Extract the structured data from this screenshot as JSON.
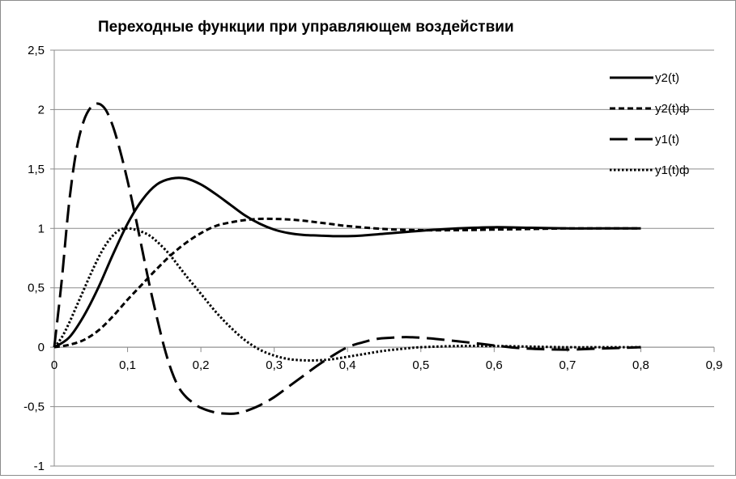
{
  "chart_data": {
    "type": "line",
    "title": "Переходные функции при управляющем воздействии",
    "xlabel": "",
    "ylabel": "",
    "xlim": [
      0,
      0.9
    ],
    "ylim": [
      -1,
      2.5
    ],
    "x_ticks": [
      "0",
      "0,1",
      "0,2",
      "0,3",
      "0,4",
      "0,5",
      "0,6",
      "0,7",
      "0,8",
      "0,9"
    ],
    "y_ticks": [
      "-1",
      "-0,5",
      "0",
      "0,5",
      "1",
      "1,5",
      "2",
      "2,5"
    ],
    "grid": "horizontal",
    "legend_position": "right",
    "series": [
      {
        "name": "y2(t)",
        "style": "solid",
        "x": [
          0,
          0.02,
          0.04,
          0.06,
          0.08,
          0.1,
          0.12,
          0.14,
          0.16,
          0.18,
          0.2,
          0.22,
          0.24,
          0.26,
          0.28,
          0.3,
          0.32,
          0.34,
          0.36,
          0.38,
          0.4,
          0.42,
          0.45,
          0.5,
          0.55,
          0.6,
          0.65,
          0.7,
          0.75,
          0.8
        ],
        "values": [
          0,
          0.08,
          0.26,
          0.5,
          0.78,
          1.04,
          1.24,
          1.37,
          1.42,
          1.42,
          1.37,
          1.29,
          1.2,
          1.11,
          1.04,
          0.99,
          0.96,
          0.945,
          0.94,
          0.935,
          0.935,
          0.94,
          0.955,
          0.98,
          1.0,
          1.01,
          1.005,
          1.0,
          1.0,
          1.0
        ]
      },
      {
        "name": "y2(t)ф",
        "style": "short-dash",
        "x": [
          0,
          0.02,
          0.04,
          0.06,
          0.08,
          0.1,
          0.12,
          0.14,
          0.16,
          0.18,
          0.2,
          0.22,
          0.24,
          0.26,
          0.28,
          0.3,
          0.32,
          0.34,
          0.36,
          0.38,
          0.4,
          0.45,
          0.5,
          0.55,
          0.6,
          0.65,
          0.7,
          0.75,
          0.8
        ],
        "values": [
          0,
          0.02,
          0.06,
          0.14,
          0.26,
          0.4,
          0.53,
          0.66,
          0.78,
          0.88,
          0.96,
          1.02,
          1.05,
          1.07,
          1.08,
          1.08,
          1.075,
          1.065,
          1.05,
          1.035,
          1.02,
          0.995,
          0.985,
          0.985,
          0.99,
          0.995,
          1.0,
          1.0,
          1.0
        ]
      },
      {
        "name": "y1(t)",
        "style": "long-dash",
        "x": [
          0,
          0.01,
          0.02,
          0.03,
          0.04,
          0.05,
          0.06,
          0.07,
          0.08,
          0.09,
          0.1,
          0.11,
          0.12,
          0.13,
          0.14,
          0.15,
          0.16,
          0.17,
          0.18,
          0.19,
          0.2,
          0.22,
          0.24,
          0.25,
          0.26,
          0.28,
          0.3,
          0.32,
          0.34,
          0.36,
          0.38,
          0.4,
          0.42,
          0.44,
          0.46,
          0.48,
          0.5,
          0.52,
          0.55,
          0.58,
          0.6,
          0.63,
          0.66,
          0.7,
          0.75,
          0.8
        ],
        "values": [
          0,
          0.55,
          1.2,
          1.65,
          1.9,
          2.02,
          2.05,
          2.0,
          1.86,
          1.65,
          1.4,
          1.12,
          0.82,
          0.52,
          0.25,
          0.0,
          -0.2,
          -0.34,
          -0.42,
          -0.47,
          -0.51,
          -0.55,
          -0.56,
          -0.555,
          -0.54,
          -0.49,
          -0.42,
          -0.33,
          -0.24,
          -0.15,
          -0.07,
          0.0,
          0.04,
          0.07,
          0.08,
          0.085,
          0.08,
          0.07,
          0.05,
          0.03,
          0.015,
          -0.005,
          -0.015,
          -0.02,
          -0.01,
          0.0
        ]
      },
      {
        "name": "y1(t)ф",
        "style": "dotted",
        "x": [
          0,
          0.01,
          0.02,
          0.03,
          0.04,
          0.05,
          0.06,
          0.07,
          0.08,
          0.09,
          0.1,
          0.11,
          0.12,
          0.13,
          0.14,
          0.15,
          0.16,
          0.18,
          0.2,
          0.22,
          0.24,
          0.26,
          0.28,
          0.3,
          0.32,
          0.34,
          0.36,
          0.38,
          0.4,
          0.42,
          0.45,
          0.48,
          0.5,
          0.55,
          0.6,
          0.65,
          0.7,
          0.75,
          0.8
        ],
        "values": [
          0,
          0.08,
          0.2,
          0.34,
          0.48,
          0.62,
          0.75,
          0.86,
          0.94,
          0.99,
          1.0,
          0.99,
          0.97,
          0.94,
          0.89,
          0.83,
          0.76,
          0.6,
          0.45,
          0.3,
          0.17,
          0.06,
          -0.02,
          -0.07,
          -0.1,
          -0.11,
          -0.11,
          -0.1,
          -0.08,
          -0.06,
          -0.03,
          -0.01,
          0.0,
          0.01,
          0.01,
          0.005,
          0.0,
          0.0,
          0.0
        ]
      }
    ]
  }
}
